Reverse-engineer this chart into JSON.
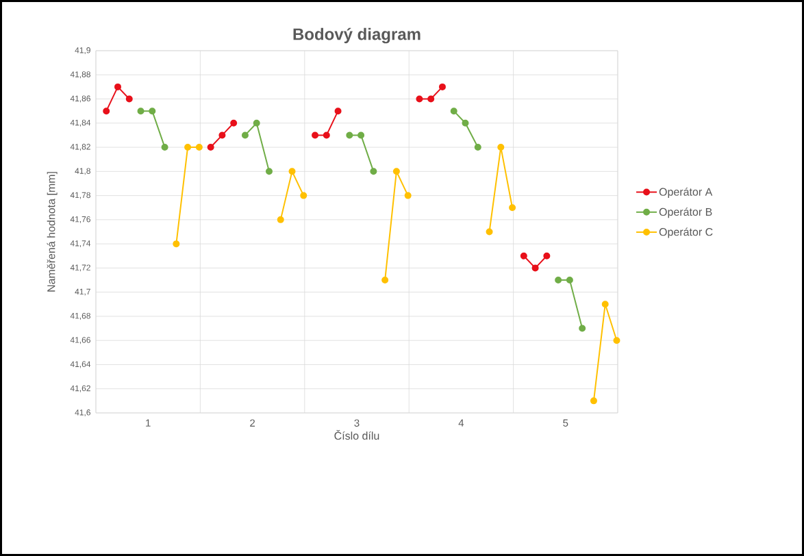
{
  "chart_data": {
    "type": "line",
    "title": "Bodový diagram",
    "xlabel": "Číslo dílu",
    "ylabel": "Naměřená hodnota [mm]",
    "xlim": [
      0.5,
      5.5
    ],
    "xticks": [
      {
        "value": 0.5,
        "label": null
      },
      1,
      {
        "value": 1.5,
        "label": null
      },
      2,
      {
        "value": 2.5,
        "label": null
      },
      3,
      {
        "value": 3.5,
        "label": null
      },
      4,
      {
        "value": 4.5,
        "label": null
      },
      5,
      {
        "value": 5.5,
        "label": null
      }
    ],
    "ylim": [
      41.6,
      41.9
    ],
    "yticks": [
      {
        "value": 41.6,
        "label": "41,6"
      },
      {
        "value": 41.62,
        "label": "41,62"
      },
      {
        "value": 41.64,
        "label": "41,64"
      },
      {
        "value": 41.66,
        "label": "41,66"
      },
      {
        "value": 41.68,
        "label": "41,68"
      },
      {
        "value": 41.7,
        "label": "41,7"
      },
      {
        "value": 41.72,
        "label": "41,72"
      },
      {
        "value": 41.74,
        "label": "41,74"
      },
      {
        "value": 41.76,
        "label": "41,76"
      },
      {
        "value": 41.78,
        "label": "41,78"
      },
      {
        "value": 41.8,
        "label": "41,8"
      },
      {
        "value": 41.82,
        "label": "41,82"
      },
      {
        "value": 41.84,
        "label": "41,84"
      },
      {
        "value": 41.86,
        "label": "41,86"
      },
      {
        "value": 41.88,
        "label": "41,88"
      },
      {
        "value": 41.9,
        "label": "41,9"
      }
    ],
    "grid": true,
    "legend": "right",
    "marker": "circle",
    "line_style": "solid",
    "series": [
      {
        "name": "Operátor A",
        "color": "#e8101a",
        "x": [
          0.6,
          0.71,
          0.82,
          1.5,
          1.6,
          1.71,
          1.82,
          2.5,
          2.6,
          2.71,
          2.82,
          3.5,
          3.6,
          3.71,
          3.82,
          4.5,
          4.6,
          4.71,
          4.82
        ],
        "values": [
          41.85,
          41.87,
          41.86,
          null,
          41.82,
          41.83,
          41.84,
          null,
          41.83,
          41.83,
          41.85,
          null,
          41.86,
          41.86,
          41.87,
          null,
          41.73,
          41.72,
          41.73
        ]
      },
      {
        "name": "Operátor B",
        "color": "#70ad47",
        "x": [
          0.93,
          1.04,
          1.16,
          1.5,
          1.93,
          2.04,
          2.16,
          2.5,
          2.93,
          3.04,
          3.16,
          3.5,
          3.93,
          4.04,
          4.16,
          4.5,
          4.93,
          5.04,
          5.16
        ],
        "values": [
          41.85,
          41.85,
          41.82,
          null,
          41.83,
          41.84,
          41.8,
          null,
          41.83,
          41.83,
          41.8,
          null,
          41.85,
          41.84,
          41.82,
          null,
          41.71,
          41.71,
          41.67
        ]
      },
      {
        "name": "Operátor C",
        "color": "#ffc000",
        "x": [
          1.27,
          1.38,
          1.49,
          1.8,
          2.27,
          2.38,
          2.49,
          2.8,
          3.27,
          3.38,
          3.49,
          3.8,
          4.27,
          4.38,
          4.49,
          4.8,
          5.27,
          5.38,
          5.49
        ],
        "values": [
          41.74,
          41.82,
          41.82,
          null,
          41.76,
          41.8,
          41.78,
          null,
          41.71,
          41.8,
          41.78,
          null,
          41.75,
          41.82,
          41.77,
          null,
          41.61,
          41.69,
          41.66
        ]
      }
    ]
  }
}
